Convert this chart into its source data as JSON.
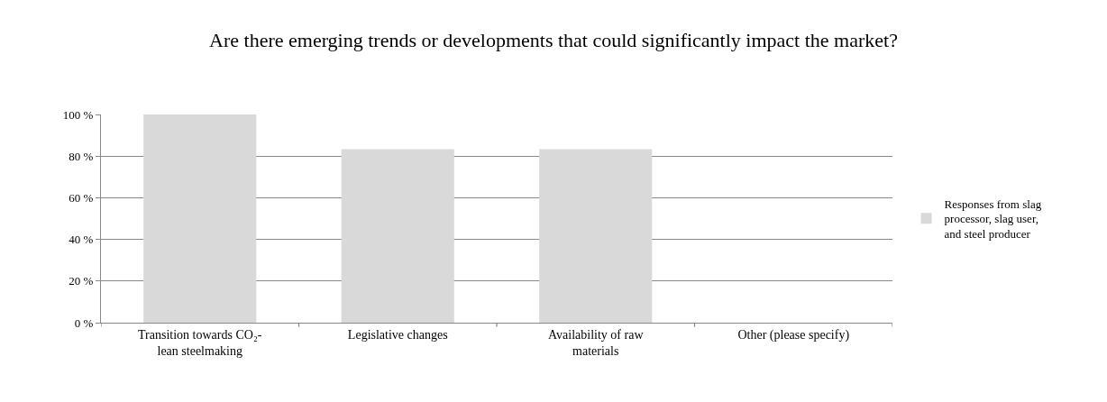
{
  "chart_data": {
    "type": "bar",
    "title": "Are there emerging trends or developments that could significantly impact the market?",
    "categories": [
      "Transition towards CO₂-lean steelmaking",
      "Legislative changes",
      "Availability of raw materials",
      "Other (please specify)"
    ],
    "series": [
      {
        "name": "Responses from slag processor, slag user, and steel producer",
        "color": "#d9d9d9",
        "values": [
          100,
          83.3,
          83.3,
          0
        ]
      }
    ],
    "ylim": [
      0,
      100
    ],
    "yticks": [
      {
        "value": 0,
        "label": "0 %"
      },
      {
        "value": 20,
        "label": "20 %"
      },
      {
        "value": 40,
        "label": "40 %"
      },
      {
        "value": 60,
        "label": "60 %"
      },
      {
        "value": 80,
        "label": "80 %"
      },
      {
        "value": 100,
        "label": "100 %"
      }
    ],
    "grid": "y",
    "legend": "right"
  }
}
